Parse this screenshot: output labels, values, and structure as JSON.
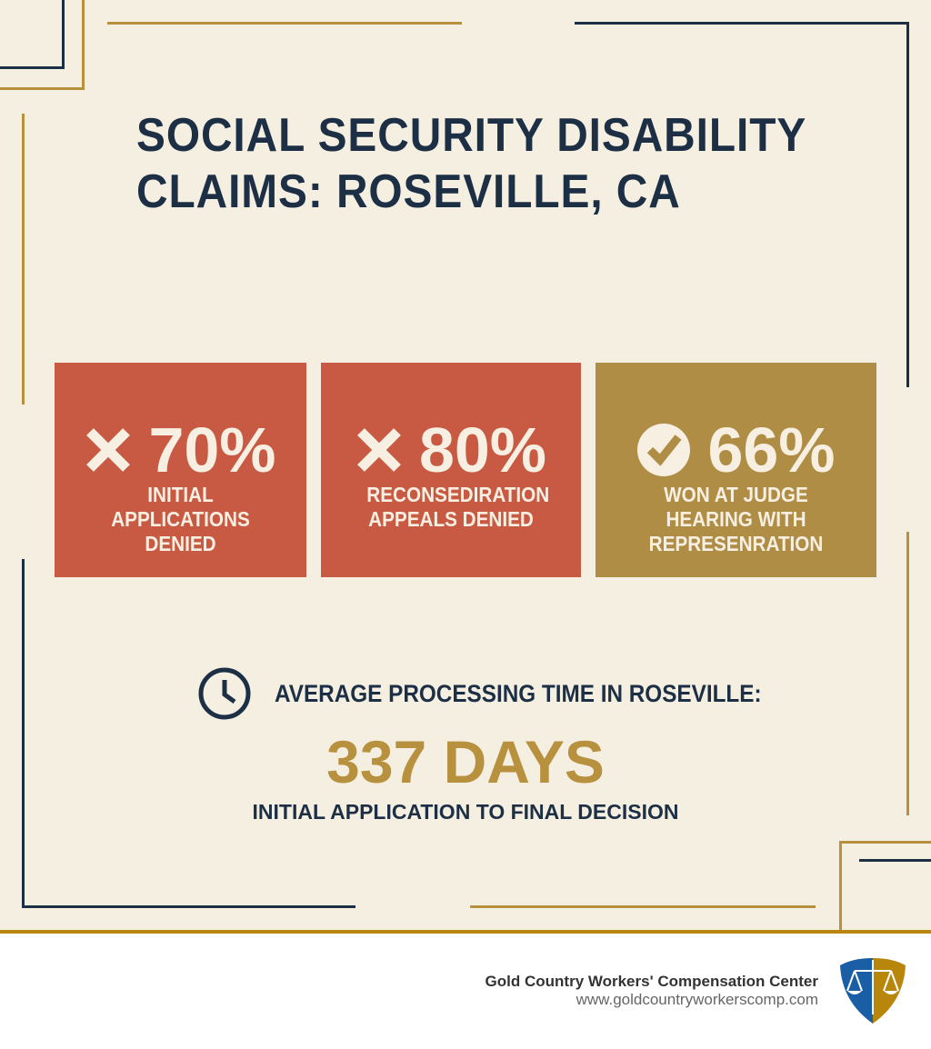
{
  "title": {
    "line1": "SOCIAL SECURITY DISABILITY",
    "line2": "CLAIMS: ROSEVILLE, CA"
  },
  "cards": [
    {
      "icon": "x-icon",
      "value": "70%",
      "label": "INITIAL APPLICATIONS DENIED",
      "color": "#c85a44"
    },
    {
      "icon": "x-icon",
      "value": "80%",
      "label": "RECONSEDIRATION APPEALS DENIED",
      "color": "#c85a44"
    },
    {
      "icon": "check-circle-icon",
      "value": "66%",
      "label": "WON AT JUDGE HEARING WITH REPRESENRATION",
      "color": "#b08d45"
    }
  ],
  "processing": {
    "label": "AVERAGE PROCESSING TIME IN ROSEVILLE:",
    "value": "337 DAYS",
    "sublabel": "INITIAL APPLICATION TO FINAL DECISION"
  },
  "footer": {
    "organization": "Gold Country Workers' Compensation Center",
    "url": "www.goldcountryworkerscomp.com"
  },
  "colors": {
    "background": "#f5efe2",
    "navy": "#1c2f45",
    "gold": "#b8913f",
    "red": "#c85a44"
  }
}
